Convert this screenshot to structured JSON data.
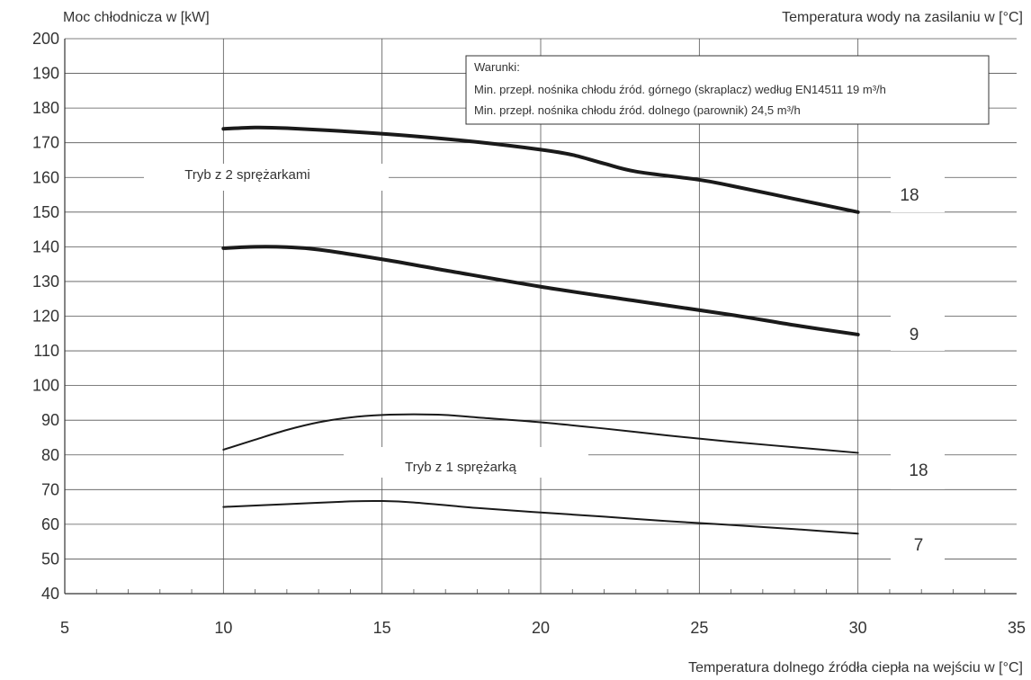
{
  "chart_data": {
    "type": "line",
    "ylabel": "Moc chłodnicza w [kW]",
    "series_axis_label": "Temperatura wody na zasilaniu w [°C]",
    "xlabel": "Temperatura dolnego źródła ciepła na wejściu w [°C]",
    "xlim": [
      5,
      35
    ],
    "ylim": [
      40,
      200
    ],
    "x_ticks": [
      5,
      10,
      15,
      20,
      25,
      30,
      35
    ],
    "y_ticks": [
      40,
      50,
      60,
      70,
      80,
      90,
      100,
      110,
      120,
      130,
      140,
      150,
      160,
      170,
      180,
      190,
      200
    ],
    "grid": true,
    "conditions": {
      "title": "Warunki:",
      "line1": "Min. przepł. nośnika chłodu źród. górnego (skraplacz) według EN14511 19 m³/h",
      "line2": "Min. przepł. nośnika chłodu źród. dolnego (parownik) 24,5 m³/h"
    },
    "mode_labels": [
      "Tryb z 2 sprężarkami",
      "Tryb z 1 sprężarką"
    ],
    "series": [
      {
        "name": "18",
        "mode": "Tryb z 2 sprężarkami",
        "width": "thick",
        "x": [
          10,
          11,
          12,
          14,
          16,
          18,
          20,
          21,
          22,
          23,
          25,
          26,
          28,
          30
        ],
        "y": [
          174,
          174.4,
          174.2,
          173.2,
          171.9,
          170.2,
          168,
          166.5,
          164,
          161.7,
          159.3,
          157.6,
          153.8,
          150
        ]
      },
      {
        "name": "9",
        "mode": "Tryb z 2 sprężarkami",
        "width": "thick",
        "x": [
          10,
          11,
          12,
          13,
          15,
          17,
          20,
          23,
          26,
          28,
          30
        ],
        "y": [
          139.6,
          140,
          139.9,
          139.2,
          136.4,
          133.2,
          128.5,
          124.4,
          120.4,
          117.4,
          114.7
        ]
      },
      {
        "name": "18",
        "mode": "Tryb z 1 sprężarką",
        "width": "thin",
        "x": [
          10,
          11,
          12,
          13,
          14,
          15,
          16,
          17,
          18,
          20,
          22,
          24,
          26,
          28,
          30
        ],
        "y": [
          81.5,
          84.4,
          87.2,
          89.4,
          90.8,
          91.5,
          91.7,
          91.5,
          90.8,
          89.4,
          87.6,
          85.6,
          83.8,
          82.2,
          80.6
        ]
      },
      {
        "name": "7",
        "mode": "Tryb z 1 sprężarką",
        "width": "thin",
        "x": [
          10,
          12,
          14,
          15,
          16,
          18,
          20,
          22,
          24,
          26,
          28,
          30
        ],
        "y": [
          65,
          65.8,
          66.6,
          66.7,
          66.3,
          64.7,
          63.4,
          62.2,
          60.9,
          59.8,
          58.6,
          57.3
        ]
      }
    ]
  }
}
